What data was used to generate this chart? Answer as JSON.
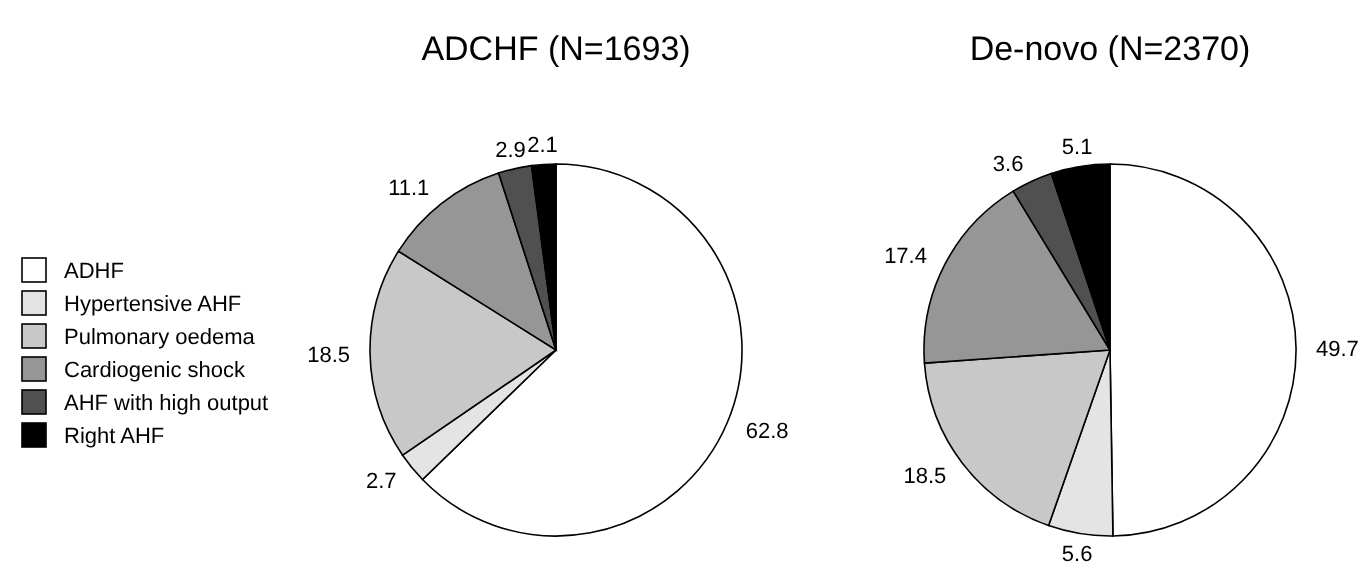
{
  "chart_data": [
    {
      "type": "pie",
      "title": "ADCHF (N=1693)",
      "categories": [
        "ADHF",
        "Hypertensive AHF",
        "Pulmonary oedema",
        "Cardiogenic shock",
        "AHF with high output",
        "Right AHF"
      ],
      "values": [
        62.8,
        2.7,
        18.5,
        11.1,
        2.9,
        2.1
      ],
      "colors": [
        "#ffffff",
        "#e4e4e4",
        "#c8c8c8",
        "#969696",
        "#505050",
        "#000000"
      ],
      "data_labels": true,
      "legend": "left"
    },
    {
      "type": "pie",
      "title": "De-novo (N=2370)",
      "categories": [
        null,
        null,
        null,
        null,
        null,
        null
      ],
      "values": [
        49.7,
        5.6,
        18.5,
        17.4,
        3.6,
        5.1
      ],
      "colors": [
        "#ffffff",
        "#e4e4e4",
        "#c8c8c8",
        "#969696",
        "#505050",
        "#000000"
      ],
      "data_labels": true,
      "legend": false
    }
  ]
}
